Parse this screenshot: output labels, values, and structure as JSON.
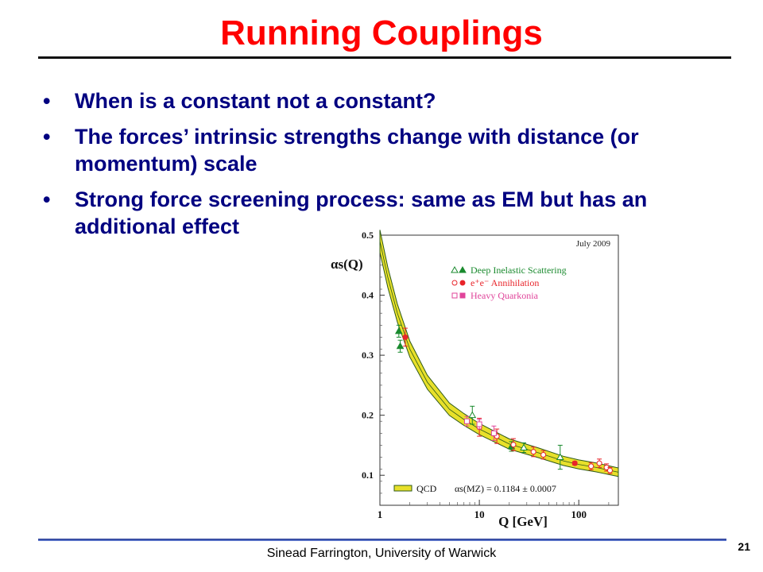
{
  "slide": {
    "title": "Running Couplings",
    "bullets": [
      "When is a constant not a constant?",
      "The forces’ intrinsic strengths change with distance (or momentum) scale",
      "Strong force screening process: same as EM but has an additional effect"
    ],
    "bullet_glyph": "•",
    "footer": "Sinead Farrington, University of Warwick",
    "page_number": "21",
    "colors": {
      "title": "#ff0000",
      "bullet_text": "#000080"
    }
  },
  "chart_data": {
    "type": "line",
    "title": "",
    "annotation_date": "July 2009",
    "xlabel": "Q [GeV]",
    "ylabel": "αs(Q)",
    "xscale": "log",
    "xlim": [
      1,
      250
    ],
    "ylim": [
      0.05,
      0.5
    ],
    "x_ticks": [
      1,
      10,
      100
    ],
    "y_ticks": [
      0.1,
      0.2,
      0.3,
      0.4,
      0.5
    ],
    "y_tick_labels": [
      "0.1",
      "0.2",
      "0.3",
      "0.4",
      "0.5"
    ],
    "grid": false,
    "legend": {
      "placement": "top-right",
      "entries": [
        {
          "label": "Deep Inelastic Scattering",
          "color": "#1a8a2e",
          "marker": "triangle"
        },
        {
          "label": "e⁺e⁻ Annihilation",
          "color": "#e8242a",
          "marker": "circle"
        },
        {
          "label": "Heavy Quarkonia",
          "color": "#e0449a",
          "marker": "square"
        }
      ]
    },
    "band": {
      "name": "QCD",
      "label": "αs(MZ) = 0.1184 ± 0.0007",
      "fill": "#e8e02a",
      "edge": "#2f5a1a",
      "curve": [
        [
          1.0,
          0.49
        ],
        [
          1.2,
          0.43
        ],
        [
          1.5,
          0.37
        ],
        [
          2.0,
          0.31
        ],
        [
          3.0,
          0.255
        ],
        [
          5.0,
          0.21
        ],
        [
          7.0,
          0.193
        ],
        [
          10.0,
          0.177
        ],
        [
          20.0,
          0.152
        ],
        [
          40.0,
          0.137
        ],
        [
          70.0,
          0.124
        ],
        [
          100.0,
          0.118
        ],
        [
          150.0,
          0.113
        ],
        [
          250.0,
          0.105
        ]
      ]
    },
    "points": [
      {
        "series": "Deep Inelastic Scattering",
        "x": 1.55,
        "y": 0.34,
        "err": 0.01,
        "filled": true
      },
      {
        "series": "Deep Inelastic Scattering",
        "x": 1.6,
        "y": 0.315,
        "err": 0.01,
        "filled": true
      },
      {
        "series": "Deep Inelastic Scattering",
        "x": 8.5,
        "y": 0.2,
        "err": 0.015,
        "filled": false
      },
      {
        "series": "Deep Inelastic Scattering",
        "x": 21.0,
        "y": 0.148,
        "err": 0.008,
        "filled": true
      },
      {
        "series": "Deep Inelastic Scattering",
        "x": 28.0,
        "y": 0.146,
        "err": 0.008,
        "filled": false
      },
      {
        "series": "Deep Inelastic Scattering",
        "x": 65.0,
        "y": 0.13,
        "err": 0.02,
        "filled": false
      },
      {
        "series": "e⁺e⁻ Annihilation",
        "x": 1.8,
        "y": 0.33,
        "err": 0.015,
        "filled": true
      },
      {
        "series": "e⁺e⁻ Annihilation",
        "x": 10.0,
        "y": 0.18,
        "err": 0.015,
        "filled": false
      },
      {
        "series": "e⁺e⁻ Annihilation",
        "x": 15.0,
        "y": 0.165,
        "err": 0.012,
        "filled": false
      },
      {
        "series": "e⁺e⁻ Annihilation",
        "x": 22.0,
        "y": 0.151,
        "err": 0.01,
        "filled": false
      },
      {
        "series": "e⁺e⁻ Annihilation",
        "x": 35.0,
        "y": 0.139,
        "err": 0.008,
        "filled": false
      },
      {
        "series": "e⁺e⁻ Annihilation",
        "x": 44.0,
        "y": 0.134,
        "err": 0.007,
        "filled": false
      },
      {
        "series": "e⁺e⁻ Annihilation",
        "x": 91.2,
        "y": 0.12,
        "err": 0.003,
        "filled": true
      },
      {
        "series": "e⁺e⁻ Annihilation",
        "x": 133.0,
        "y": 0.115,
        "err": 0.006,
        "filled": false
      },
      {
        "series": "e⁺e⁻ Annihilation",
        "x": 161.0,
        "y": 0.12,
        "err": 0.007,
        "filled": false
      },
      {
        "series": "e⁺e⁻ Annihilation",
        "x": 190.0,
        "y": 0.113,
        "err": 0.006,
        "filled": false
      },
      {
        "series": "e⁺e⁻ Annihilation",
        "x": 206.0,
        "y": 0.108,
        "err": 0.005,
        "filled": false
      },
      {
        "series": "Heavy Quarkonia",
        "x": 7.5,
        "y": 0.19,
        "err": 0.008,
        "filled": false
      },
      {
        "series": "Heavy Quarkonia",
        "x": 10.0,
        "y": 0.185,
        "err": 0.008,
        "filled": false
      },
      {
        "series": "Heavy Quarkonia",
        "x": 14.0,
        "y": 0.17,
        "err": 0.012,
        "filled": false
      }
    ]
  }
}
